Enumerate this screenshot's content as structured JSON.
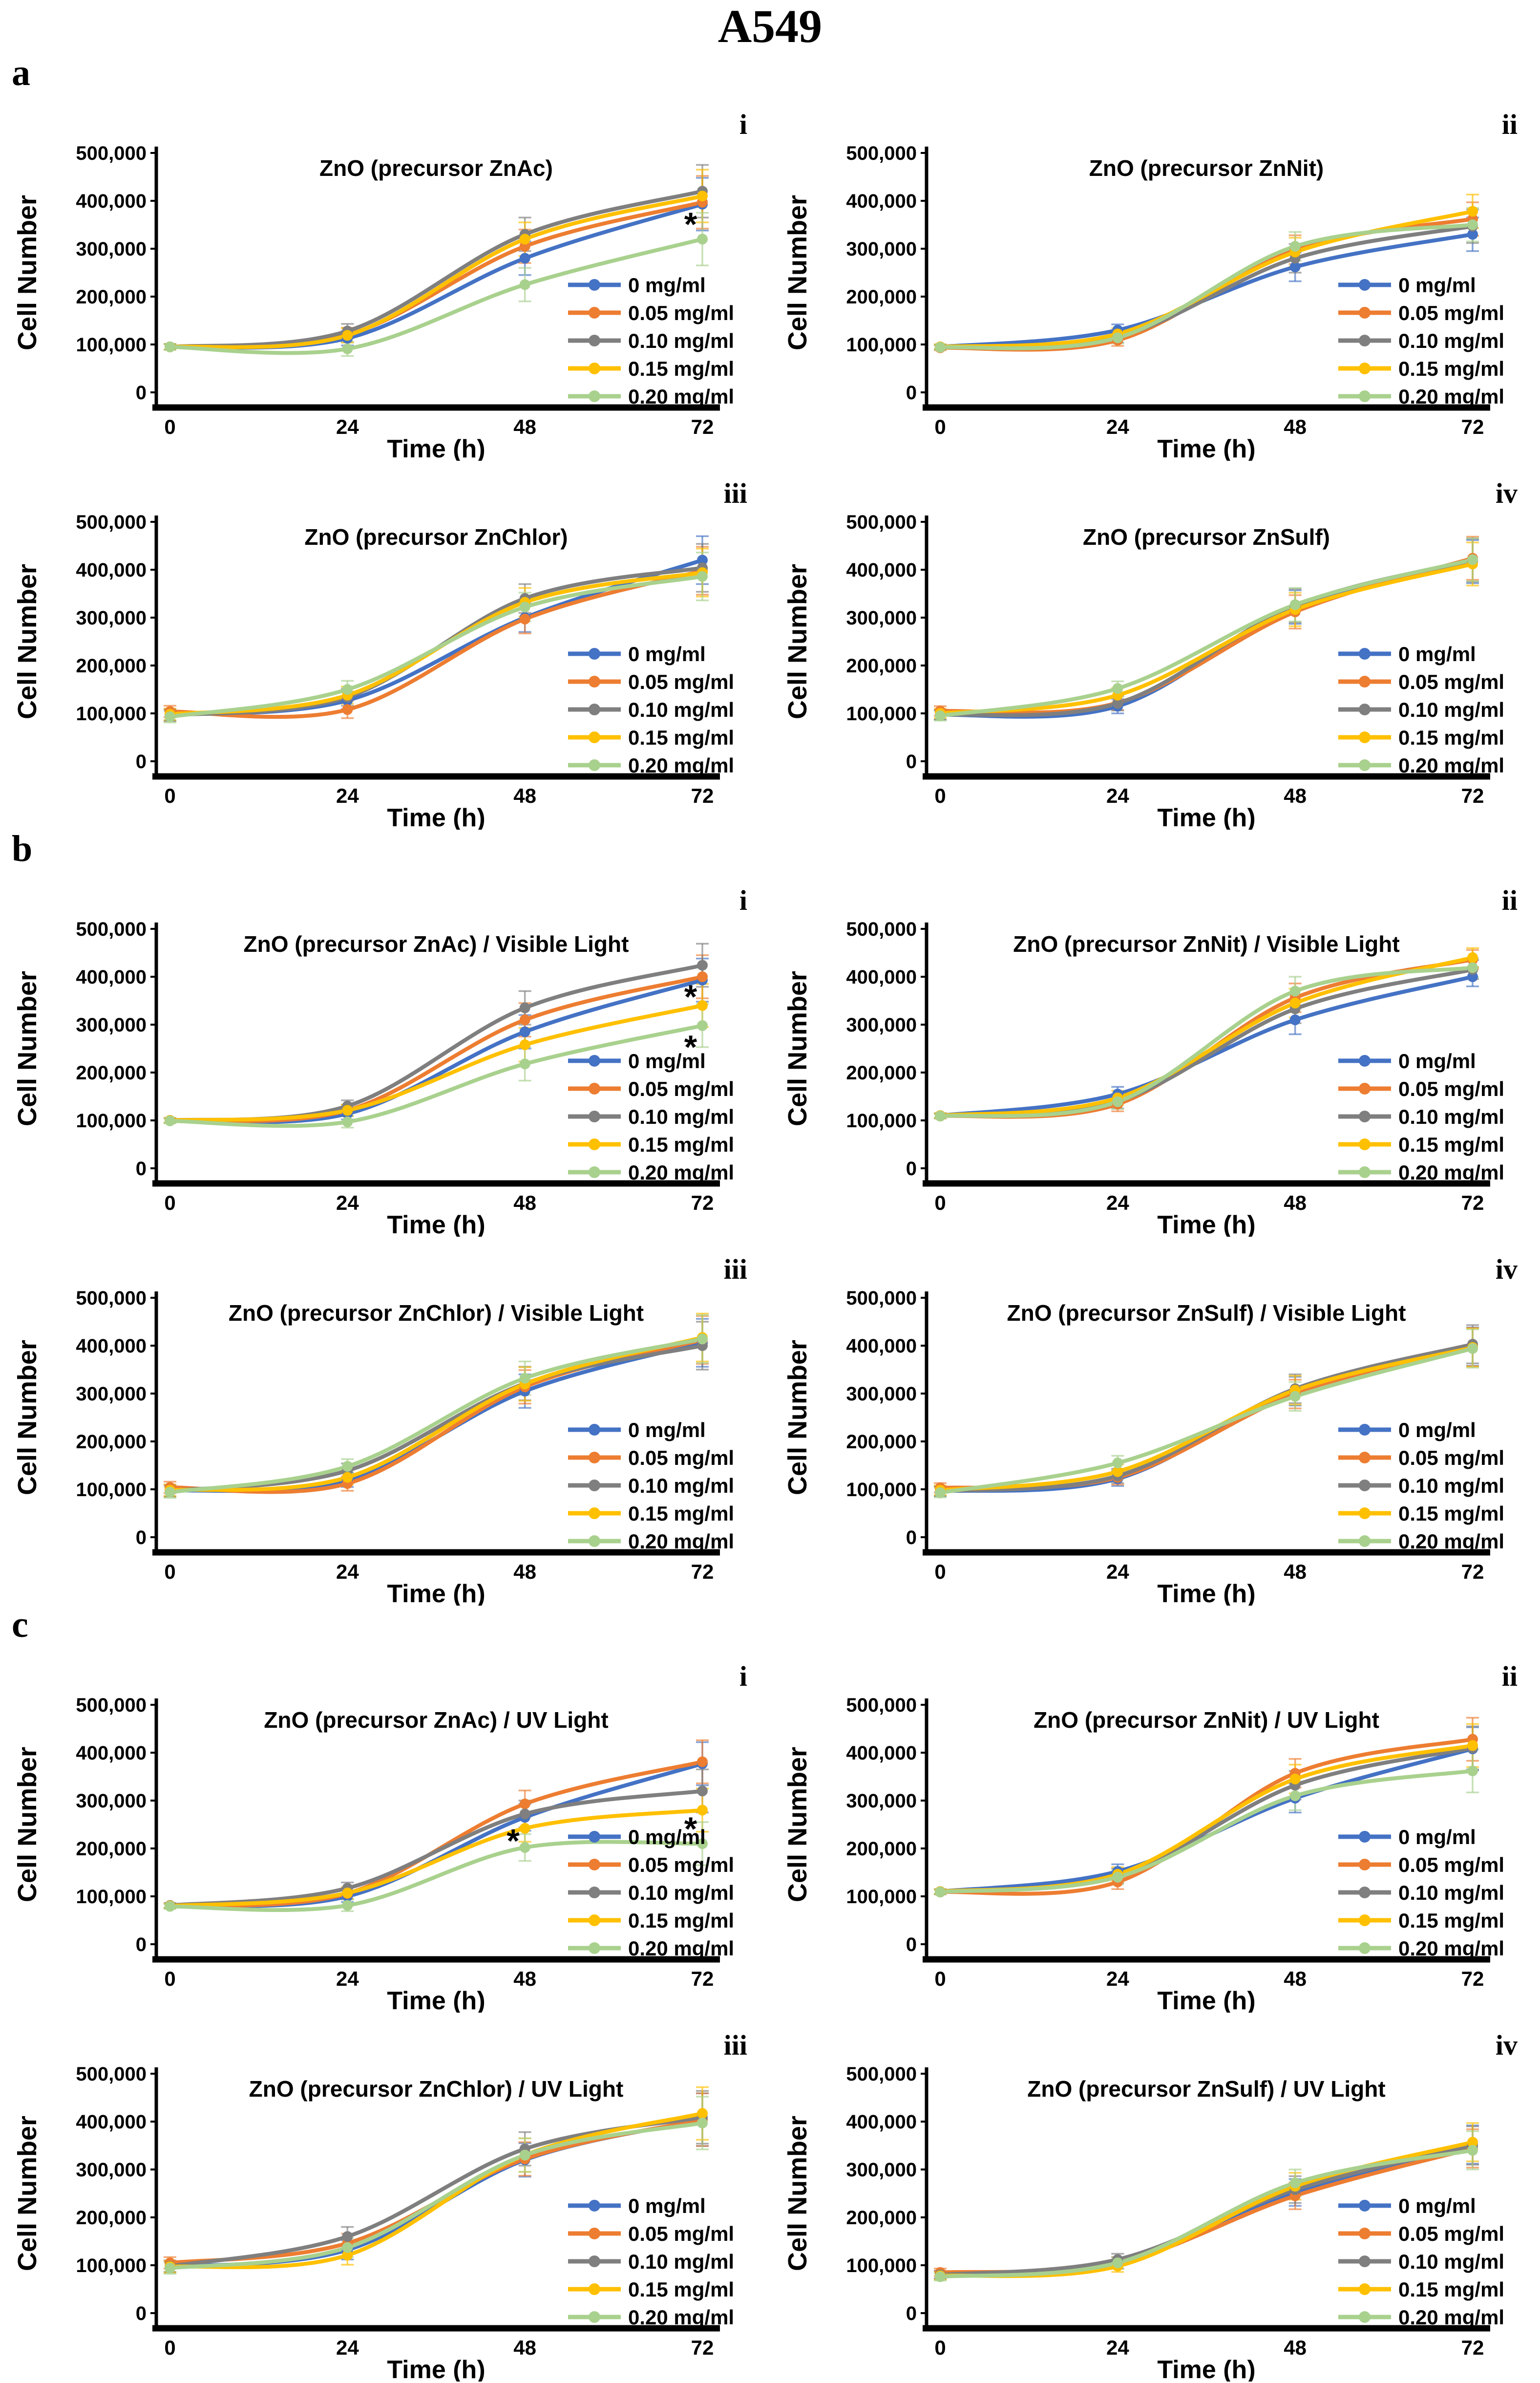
{
  "figure_title": "A549",
  "sections": [
    {
      "label": "a"
    },
    {
      "label": "b"
    },
    {
      "label": "c"
    }
  ],
  "axes": {
    "x_label": "Time (h)",
    "y_label": "Cell Number",
    "x_ticks": [
      0,
      24,
      48,
      72
    ],
    "y_tick_labels": [
      "0",
      "100,000",
      "200,000",
      "300,000",
      "400,000",
      "500,000"
    ],
    "y_max": 500000
  },
  "legend": [
    {
      "label": "0  mg/ml",
      "color": "#4472C4"
    },
    {
      "label": "0.05 mg/ml",
      "color": "#ED7D31"
    },
    {
      "label": "0.10 mg/ml",
      "color": "#7F7F7F"
    },
    {
      "label": "0.15 mg/ml",
      "color": "#FFC000"
    },
    {
      "label": "0.20 mg/ml",
      "color": "#A9D18E"
    }
  ],
  "chart_data": [
    {
      "section": "a",
      "numeral": "i",
      "type": "line",
      "title": "ZnO (precursor ZnAc)",
      "xlabel": "Time (h)",
      "ylabel": "Cell Number",
      "ylim": [
        0,
        500000
      ],
      "x": [
        0,
        24,
        48,
        72
      ],
      "series": [
        {
          "name": "0  mg/ml",
          "values": [
            95000,
            113000,
            280000,
            393000
          ]
        },
        {
          "name": "0.05 mg/ml",
          "values": [
            95000,
            120000,
            305000,
            397000
          ]
        },
        {
          "name": "0.10 mg/ml",
          "values": [
            95000,
            128000,
            330000,
            420000
          ]
        },
        {
          "name": "0.15 mg/ml",
          "values": [
            95000,
            119000,
            320000,
            410000
          ]
        },
        {
          "name": "0.20 mg/ml",
          "values": [
            95000,
            91000,
            225000,
            320000
          ]
        }
      ],
      "err": [
        6000,
        15000,
        35000,
        55000
      ],
      "annotations": [
        {
          "t": 72,
          "value": 350000,
          "symbol": "*"
        }
      ]
    },
    {
      "section": "a",
      "numeral": "ii",
      "type": "line",
      "title": "ZnO (precursor ZnNit)",
      "xlabel": "Time (h)",
      "ylabel": "Cell Number",
      "ylim": [
        0,
        500000
      ],
      "x": [
        0,
        24,
        48,
        72
      ],
      "series": [
        {
          "name": "0  mg/ml",
          "values": [
            95000,
            130000,
            262000,
            330000
          ]
        },
        {
          "name": "0.05 mg/ml",
          "values": [
            93000,
            109000,
            298000,
            362000
          ]
        },
        {
          "name": "0.10 mg/ml",
          "values": [
            95000,
            116000,
            280000,
            347000
          ]
        },
        {
          "name": "0.15 mg/ml",
          "values": [
            95000,
            122000,
            293000,
            378000
          ]
        },
        {
          "name": "0.20 mg/ml",
          "values": [
            94000,
            114000,
            305000,
            350000
          ]
        }
      ],
      "err": [
        5000,
        12000,
        30000,
        35000
      ],
      "annotations": []
    },
    {
      "section": "a",
      "numeral": "iii",
      "type": "line",
      "title": "ZnO (precursor ZnChlor)",
      "xlabel": "Time (h)",
      "ylabel": "Cell Number",
      "ylim": [
        0,
        500000
      ],
      "x": [
        0,
        24,
        48,
        72
      ],
      "series": [
        {
          "name": "0  mg/ml",
          "values": [
            97000,
            127000,
            300000,
            420000
          ]
        },
        {
          "name": "0.05 mg/ml",
          "values": [
            104000,
            108000,
            297000,
            398000
          ]
        },
        {
          "name": "0.10 mg/ml",
          "values": [
            96000,
            134000,
            340000,
            404000
          ]
        },
        {
          "name": "0.15 mg/ml",
          "values": [
            98000,
            138000,
            332000,
            394000
          ]
        },
        {
          "name": "0.20 mg/ml",
          "values": [
            93000,
            150000,
            322000,
            386000
          ]
        }
      ],
      "err": [
        12000,
        18000,
        30000,
        50000
      ],
      "annotations": []
    },
    {
      "section": "a",
      "numeral": "iv",
      "type": "line",
      "title": "ZnO (precursor ZnSulf)",
      "xlabel": "Time (h)",
      "ylabel": "Cell Number",
      "ylim": [
        0,
        500000
      ],
      "x": [
        0,
        24,
        48,
        72
      ],
      "series": [
        {
          "name": "0  mg/ml",
          "values": [
            97000,
            115000,
            322000,
            417000
          ]
        },
        {
          "name": "0.05 mg/ml",
          "values": [
            105000,
            122000,
            312000,
            424000
          ]
        },
        {
          "name": "0.10 mg/ml",
          "values": [
            97000,
            121000,
            325000,
            420000
          ]
        },
        {
          "name": "0.15 mg/ml",
          "values": [
            100000,
            138000,
            317000,
            412000
          ]
        },
        {
          "name": "0.20 mg/ml",
          "values": [
            95000,
            152000,
            327000,
            421000
          ]
        }
      ],
      "err": [
        10000,
        15000,
        35000,
        45000
      ],
      "annotations": []
    },
    {
      "section": "b",
      "numeral": "i",
      "type": "line",
      "title": "ZnO (precursor ZnAc) / Visible Light",
      "xlabel": "Time (h)",
      "ylabel": "Cell Number",
      "ylim": [
        0,
        500000
      ],
      "x": [
        0,
        24,
        48,
        72
      ],
      "series": [
        {
          "name": "0  mg/ml",
          "values": [
            100000,
            114000,
            285000,
            393000
          ]
        },
        {
          "name": "0.05 mg/ml",
          "values": [
            100000,
            121000,
            310000,
            400000
          ]
        },
        {
          "name": "0.10 mg/ml",
          "values": [
            100000,
            130000,
            335000,
            424000
          ]
        },
        {
          "name": "0.15 mg/ml",
          "values": [
            100000,
            121000,
            258000,
            340000
          ]
        },
        {
          "name": "0.20 mg/ml",
          "values": [
            99000,
            97000,
            218000,
            298000
          ]
        }
      ],
      "err": [
        5000,
        12000,
        35000,
        45000
      ],
      "annotations": [
        {
          "t": 72,
          "value": 357000,
          "symbol": "*"
        },
        {
          "t": 72,
          "value": 252000,
          "symbol": "*"
        }
      ]
    },
    {
      "section": "b",
      "numeral": "ii",
      "type": "line",
      "title": "ZnO (precursor ZnNit) / Visible Light",
      "xlabel": "Time (h)",
      "ylabel": "Cell Number",
      "ylim": [
        0,
        500000
      ],
      "x": [
        0,
        24,
        48,
        72
      ],
      "series": [
        {
          "name": "0  mg/ml",
          "values": [
            110000,
            155000,
            310000,
            400000
          ]
        },
        {
          "name": "0.05 mg/ml",
          "values": [
            109000,
            134000,
            356000,
            436000
          ]
        },
        {
          "name": "0.10 mg/ml",
          "values": [
            110000,
            140000,
            333000,
            415000
          ]
        },
        {
          "name": "0.15 mg/ml",
          "values": [
            110000,
            147000,
            345000,
            440000
          ]
        },
        {
          "name": "0.20 mg/ml",
          "values": [
            109000,
            139000,
            370000,
            419000
          ]
        }
      ],
      "err": [
        5000,
        15000,
        30000,
        20000
      ],
      "annotations": []
    },
    {
      "section": "b",
      "numeral": "iii",
      "type": "line",
      "title": "ZnO (precursor ZnChlor) / Visible Light",
      "xlabel": "Time (h)",
      "ylabel": "Cell Number",
      "ylim": [
        0,
        500000
      ],
      "x": [
        0,
        24,
        48,
        72
      ],
      "series": [
        {
          "name": "0  mg/ml",
          "values": [
            97000,
            120000,
            305000,
            406000
          ]
        },
        {
          "name": "0.05 mg/ml",
          "values": [
            104000,
            112000,
            314000,
            412000
          ]
        },
        {
          "name": "0.10 mg/ml",
          "values": [
            97000,
            139000,
            321000,
            400000
          ]
        },
        {
          "name": "0.15 mg/ml",
          "values": [
            98000,
            125000,
            320000,
            417000
          ]
        },
        {
          "name": "0.20 mg/ml",
          "values": [
            94000,
            148000,
            332000,
            414000
          ]
        }
      ],
      "err": [
        12000,
        15000,
        35000,
        50000
      ],
      "annotations": []
    },
    {
      "section": "b",
      "numeral": "iv",
      "type": "line",
      "title": "ZnO (precursor ZnSulf) / Visible Light",
      "xlabel": "Time (h)",
      "ylabel": "Cell Number",
      "ylim": [
        0,
        500000
      ],
      "x": [
        0,
        24,
        48,
        72
      ],
      "series": [
        {
          "name": "0  mg/ml",
          "values": [
            96000,
            122000,
            305000,
            398000
          ]
        },
        {
          "name": "0.05 mg/ml",
          "values": [
            103000,
            125000,
            299000,
            397000
          ]
        },
        {
          "name": "0.10 mg/ml",
          "values": [
            96000,
            128000,
            310000,
            403000
          ]
        },
        {
          "name": "0.15 mg/ml",
          "values": [
            98000,
            137000,
            307000,
            396000
          ]
        },
        {
          "name": "0.20 mg/ml",
          "values": [
            93000,
            155000,
            294000,
            394000
          ]
        }
      ],
      "err": [
        10000,
        15000,
        30000,
        40000
      ],
      "annotations": []
    },
    {
      "section": "c",
      "numeral": "i",
      "type": "line",
      "title": "ZnO (precursor ZnAc) / UV Light",
      "xlabel": "Time (h)",
      "ylabel": "Cell Number",
      "ylim": [
        0,
        500000
      ],
      "x": [
        0,
        24,
        48,
        72
      ],
      "series": [
        {
          "name": "0  mg/ml",
          "values": [
            80000,
            100000,
            265000,
            377000
          ]
        },
        {
          "name": "0.05 mg/ml",
          "values": [
            80000,
            106000,
            293000,
            381000
          ]
        },
        {
          "name": "0.10 mg/ml",
          "values": [
            81000,
            117000,
            272000,
            320000
          ]
        },
        {
          "name": "0.15 mg/ml",
          "values": [
            80000,
            107000,
            242000,
            280000
          ]
        },
        {
          "name": "0.20 mg/ml",
          "values": [
            79000,
            81000,
            202000,
            210000
          ]
        }
      ],
      "err": [
        5000,
        12000,
        28000,
        45000
      ],
      "annotations": [
        {
          "t": 48,
          "value": 215000,
          "symbol": "*"
        },
        {
          "t": 72,
          "value": 240000,
          "symbol": "*"
        }
      ]
    },
    {
      "section": "c",
      "numeral": "ii",
      "type": "line",
      "title": "ZnO (precursor ZnNit) / UV Light",
      "xlabel": "Time (h)",
      "ylabel": "Cell Number",
      "ylim": [
        0,
        500000
      ],
      "x": [
        0,
        24,
        48,
        72
      ],
      "series": [
        {
          "name": "0  mg/ml",
          "values": [
            110000,
            152000,
            305000,
            408000
          ]
        },
        {
          "name": "0.05 mg/ml",
          "values": [
            109000,
            130000,
            357000,
            428000
          ]
        },
        {
          "name": "0.10 mg/ml",
          "values": [
            110000,
            143000,
            332000,
            410000
          ]
        },
        {
          "name": "0.15 mg/ml",
          "values": [
            110000,
            146000,
            345000,
            415000
          ]
        },
        {
          "name": "0.20 mg/ml",
          "values": [
            109000,
            140000,
            310000,
            362000
          ]
        }
      ],
      "err": [
        5000,
        15000,
        30000,
        45000
      ],
      "annotations": []
    },
    {
      "section": "c",
      "numeral": "iii",
      "type": "line",
      "title": "ZnO (precursor ZnChlor) / UV Light",
      "xlabel": "Time (h)",
      "ylabel": "Cell Number",
      "ylim": [
        0,
        500000
      ],
      "x": [
        0,
        24,
        48,
        72
      ],
      "series": [
        {
          "name": "0  mg/ml",
          "values": [
            97000,
            132000,
            320000,
            404000
          ]
        },
        {
          "name": "0.05 mg/ml",
          "values": [
            105000,
            146000,
            322000,
            404000
          ]
        },
        {
          "name": "0.10 mg/ml",
          "values": [
            98000,
            160000,
            343000,
            409000
          ]
        },
        {
          "name": "0.15 mg/ml",
          "values": [
            97000,
            121000,
            330000,
            417000
          ]
        },
        {
          "name": "0.20 mg/ml",
          "values": [
            94000,
            137000,
            330000,
            397000
          ]
        }
      ],
      "err": [
        12000,
        20000,
        35000,
        55000
      ],
      "annotations": []
    },
    {
      "section": "c",
      "numeral": "iv",
      "type": "line",
      "title": "ZnO (precursor ZnSulf) / UV Light",
      "xlabel": "Time (h)",
      "ylabel": "Cell Number",
      "ylim": [
        0,
        500000
      ],
      "x": [
        0,
        24,
        48,
        72
      ],
      "series": [
        {
          "name": "0  mg/ml",
          "values": [
            80000,
            105000,
            252000,
            352000
          ]
        },
        {
          "name": "0.05 mg/ml",
          "values": [
            85000,
            105000,
            245000,
            344000
          ]
        },
        {
          "name": "0.10 mg/ml",
          "values": [
            80000,
            112000,
            258000,
            350000
          ]
        },
        {
          "name": "0.15 mg/ml",
          "values": [
            78000,
            98000,
            265000,
            357000
          ]
        },
        {
          "name": "0.20 mg/ml",
          "values": [
            76000,
            105000,
            272000,
            340000
          ]
        }
      ],
      "err": [
        8000,
        12000,
        28000,
        40000
      ],
      "annotations": []
    }
  ]
}
